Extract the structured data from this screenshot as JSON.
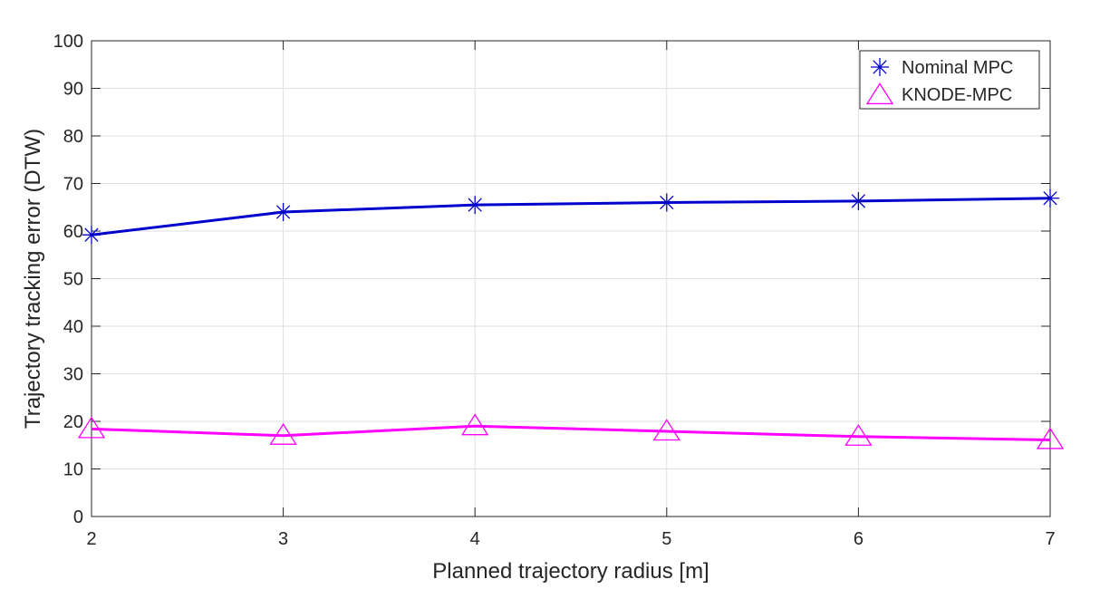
{
  "chart_data": {
    "type": "line",
    "title": "",
    "xlabel": "Planned trajectory radius [m]",
    "ylabel": "Trajectory tracking error (DTW)",
    "x": [
      2,
      3,
      4,
      5,
      6,
      7
    ],
    "xlim": [
      2,
      7
    ],
    "ylim": [
      0,
      100
    ],
    "xticks": [
      "2",
      "3",
      "4",
      "5",
      "6",
      "7"
    ],
    "yticks": [
      "0",
      "10",
      "20",
      "30",
      "40",
      "50",
      "60",
      "70",
      "80",
      "90",
      "100"
    ],
    "grid": true,
    "legend_position": "top-right",
    "series": [
      {
        "name": "Nominal MPC",
        "values": [
          59.2,
          64.0,
          65.5,
          66.0,
          66.3,
          66.9
        ],
        "color": "#0000cc",
        "marker": "asterisk"
      },
      {
        "name": "KNODE-MPC",
        "values": [
          18.4,
          17.0,
          19.0,
          17.9,
          16.8,
          16.1
        ],
        "color": "#ff00ff",
        "marker": "triangle"
      }
    ]
  }
}
